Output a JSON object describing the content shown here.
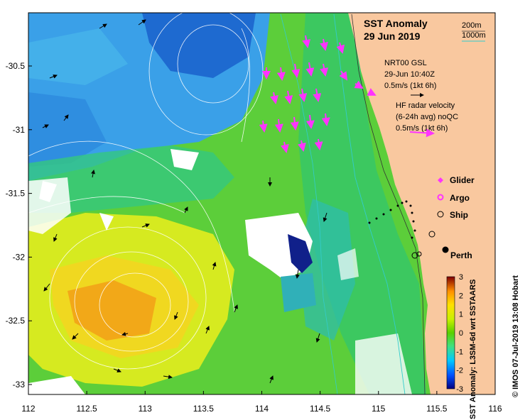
{
  "title": "SST Anomaly",
  "date": "29 Jun 2019",
  "depth_legend": {
    "contour1": "200m",
    "contour2": "1000m",
    "contour1_color": "#333333",
    "contour2_color": "#33cccc"
  },
  "vector_legend": {
    "model_lines": [
      "NRT00 GSL",
      "29-Jun 10:40Z",
      "0.5m/s (1kt 6h)"
    ],
    "radar_lines": [
      "HF radar velocity",
      "(6-24h avg) noQC",
      "0.5m/s (1kt 6h)"
    ],
    "radar_color": "#ff33ff"
  },
  "symbol_legend": [
    {
      "name": "Glider",
      "icon": "magenta-diamond-icon"
    },
    {
      "name": "Argo",
      "icon": "magenta-ring-icon"
    },
    {
      "name": "Ship",
      "icon": "black-ring-icon"
    }
  ],
  "place_label": "Perth",
  "x_ticks": [
    "112",
    "112.5",
    "113",
    "113.5",
    "114",
    "114.5",
    "115",
    "115.5",
    "116"
  ],
  "y_ticks": [
    "-30.5",
    "-31",
    "-31.5",
    "-32",
    "-32.5",
    "-33"
  ],
  "colorbar": {
    "ticks": [
      "3",
      "2",
      "1",
      "0",
      "-1",
      "-2",
      "-3"
    ],
    "label": "SST Anomaly: L3SM-6d wrt SSTAARS",
    "range": [
      -3,
      3
    ],
    "stops": [
      "#00007f",
      "#0050ff",
      "#00c8ff",
      "#40e080",
      "#5ad000",
      "#c8f000",
      "#ffe000",
      "#ff9000",
      "#ff2000",
      "#800000"
    ]
  },
  "credit": "© IMOS 07-Jul-2019 13:08 Hobart",
  "colors": {
    "land": "#f9c89f",
    "ocean_gap": "#ffffff"
  }
}
